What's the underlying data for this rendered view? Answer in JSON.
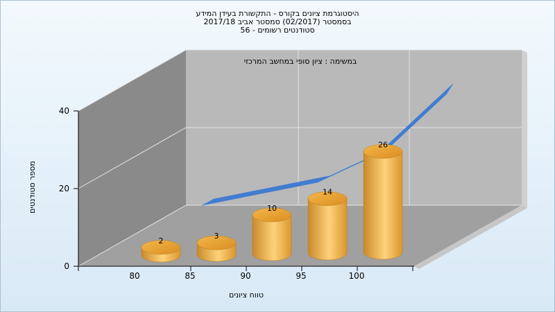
{
  "chart_data": {
    "type": "bar",
    "title_lines": [
      "היסטוגרמת ציונים בקורס - התקשורת בעידן המידע",
      "בסמסטר  (02/2017)  סמסטר אביב 2017/18",
      "סטודנטים רשומים - 56"
    ],
    "subtitle": "במשימה : ציון סופי במחשב המרכזי",
    "xlabel": "טווח ציונים",
    "ylabel": "מספר סטודנטים",
    "categories": [
      "80",
      "85",
      "90",
      "95",
      "100"
    ],
    "values": [
      2,
      3,
      10,
      14,
      26
    ],
    "cumulative_area": [
      7,
      10,
      13,
      20,
      34
    ],
    "ylim": [
      0,
      40
    ],
    "yticks": [
      "0",
      "20",
      "40"
    ],
    "grid": true,
    "colors": {
      "bar": "#e8a53a",
      "area": "#3a78d2",
      "wall": "#b9b9b9",
      "floor": "#a0a0a0"
    }
  }
}
